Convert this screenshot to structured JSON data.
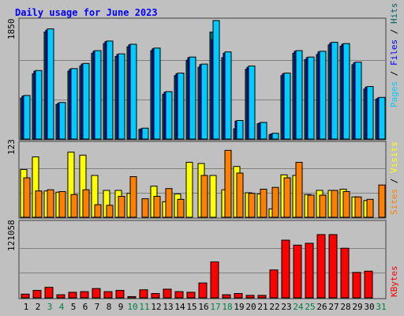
{
  "chart_data": [
    {
      "type": "bar",
      "panel": "top",
      "title": "Daily usage for June 2023",
      "ylabel": "Pages / Files / Hits",
      "ymax_label": "1850",
      "ylim": [
        0,
        1850
      ],
      "categories": [
        "1",
        "2",
        "3",
        "4",
        "5",
        "6",
        "7",
        "8",
        "9",
        "10",
        "11",
        "12",
        "13",
        "14",
        "15",
        "16",
        "17",
        "18",
        "19",
        "20",
        "21",
        "22",
        "23",
        "24",
        "25",
        "26",
        "27",
        "28",
        "29",
        "30",
        "31"
      ],
      "series": [
        {
          "name": "Pages",
          "values": [
            680,
            1070,
            1720,
            570,
            1100,
            1180,
            1380,
            1530,
            1330,
            1480,
            170,
            1420,
            740,
            1030,
            1280,
            1170,
            1850,
            1360,
            290,
            1140,
            260,
            90,
            1030,
            1380,
            1280,
            1370,
            1510,
            1490,
            1200,
            820,
            650
          ]
        },
        {
          "name": "Files",
          "values": [
            670,
            1060,
            1700,
            560,
            1090,
            1170,
            1370,
            1520,
            1320,
            1470,
            160,
            1410,
            730,
            1020,
            1270,
            1160,
            1550,
            1340,
            280,
            1120,
            250,
            80,
            1020,
            1370,
            1270,
            1360,
            1500,
            1480,
            1190,
            810,
            640
          ]
        },
        {
          "name": "Hits",
          "values": [
            640,
            1020,
            1670,
            540,
            1060,
            1140,
            1340,
            1490,
            1290,
            1440,
            150,
            1380,
            700,
            990,
            1230,
            1120,
            1670,
            1270,
            160,
            1090,
            240,
            70,
            990,
            1340,
            1240,
            1320,
            1470,
            1450,
            1160,
            780,
            620
          ]
        }
      ]
    },
    {
      "type": "bar",
      "panel": "middle",
      "ylabel": "Sites / Visits",
      "ymax_label": "123",
      "ylim": [
        0,
        123
      ],
      "categories": [
        "1",
        "2",
        "3",
        "4",
        "5",
        "6",
        "7",
        "8",
        "9",
        "10",
        "11",
        "12",
        "13",
        "14",
        "15",
        "16",
        "17",
        "18",
        "19",
        "20",
        "21",
        "22",
        "23",
        "24",
        "25",
        "26",
        "27",
        "28",
        "29",
        "30",
        "31"
      ],
      "series": [
        {
          "name": "Visits",
          "values": [
            80,
            101,
            44,
            42,
            109,
            104,
            70,
            45,
            45,
            40,
            0,
            52,
            26,
            39,
            92,
            90,
            70,
            46,
            85,
            41,
            39,
            14,
            71,
            70,
            38,
            45,
            45,
            47,
            34,
            28,
            0
          ]
        },
        {
          "name": "Sites",
          "values": [
            66,
            44,
            46,
            43,
            38,
            46,
            21,
            20,
            35,
            68,
            31,
            35,
            48,
            30,
            0,
            70,
            0,
            112,
            74,
            40,
            47,
            50,
            66,
            92,
            37,
            37,
            45,
            43,
            34,
            30,
            54
          ]
        }
      ]
    },
    {
      "type": "bar",
      "panel": "bottom",
      "ylabel": "KBytes",
      "ymax_label": "121058",
      "ylim": [
        0,
        121058
      ],
      "categories": [
        "1",
        "2",
        "3",
        "4",
        "5",
        "6",
        "7",
        "8",
        "9",
        "10",
        "11",
        "12",
        "13",
        "14",
        "15",
        "16",
        "17",
        "18",
        "19",
        "20",
        "21",
        "22",
        "23",
        "24",
        "25",
        "26",
        "27",
        "28",
        "29",
        "30",
        "31"
      ],
      "series": [
        {
          "name": "KBytes",
          "values": [
            6000,
            12000,
            17000,
            5000,
            9000,
            10000,
            15000,
            10000,
            12000,
            2000,
            13000,
            7000,
            14000,
            10000,
            9000,
            24000,
            58000,
            5000,
            7000,
            4000,
            4000,
            45000,
            93000,
            85000,
            88000,
            102000,
            102000,
            80000,
            41000,
            43000,
            0
          ]
        }
      ]
    }
  ],
  "colors": {
    "background": "#c0c0c0",
    "frame_light": "#ffffff",
    "frame_dark": "#404040",
    "grid": "#808080",
    "title": "#0000ff",
    "hits": "#006666",
    "files": "#0000ff",
    "pages": "#00ccff",
    "visits": "#ffff00",
    "sites": "#ff8000",
    "kbytes": "#ff0000",
    "weekend": "#008040",
    "weekday": "#000000",
    "slash": "#000000"
  },
  "weekend_days": [
    3,
    4,
    10,
    11,
    17,
    18,
    24,
    25,
    31
  ],
  "legend_sep": " / "
}
